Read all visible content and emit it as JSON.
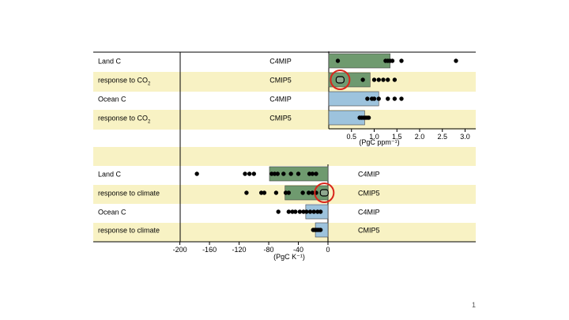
{
  "slide": {
    "page_number": "1"
  },
  "chart_data": [
    {
      "type": "scatter",
      "panel": "top",
      "xlabel": "(PgC ppm⁻¹)",
      "xlim": [
        -1.6,
        3.2
      ],
      "x_ticks": [
        0.5,
        1.0,
        1.5,
        2.0,
        2.5,
        3.0
      ],
      "x_tick_labels": [
        "0.5",
        "1.0",
        "1.5",
        "2.0",
        "2.5",
        "3.0"
      ],
      "rows": [
        {
          "group_lines": [
            "Land C",
            ""
          ],
          "model": "C4MIP",
          "bar_value": 1.35,
          "bar_color": "#6f9a6f",
          "points": [
            0.2,
            1.25,
            1.3,
            1.35,
            1.4,
            1.6,
            2.8
          ]
        },
        {
          "group_lines": [
            "response to CO",
            "2"
          ],
          "model": "CMIP5",
          "bar_value": 0.91,
          "bar_color": "#6f9a6f",
          "points": [
            0.25,
            0.75,
            1.0,
            1.1,
            1.2,
            1.3,
            1.45
          ],
          "highlight": 0.25
        },
        {
          "group_lines": [
            "Ocean C",
            ""
          ],
          "model": "C4MIP",
          "bar_value": 1.1,
          "bar_color": "#9dc3dd",
          "points": [
            0.85,
            0.95,
            1.0,
            1.1,
            1.3,
            1.45,
            1.6
          ]
        },
        {
          "group_lines": [
            "response to CO",
            "2"
          ],
          "model": "CMIP5",
          "bar_value": 0.79,
          "bar_color": "#9dc3dd",
          "points": [
            0.68,
            0.72,
            0.76,
            0.8,
            0.84,
            0.88
          ]
        }
      ]
    },
    {
      "type": "scatter",
      "panel": "bottom",
      "xlabel": "(PgC K⁻¹)",
      "xlim": [
        -200,
        100
      ],
      "x_ticks": [
        -200,
        -160,
        -120,
        -80,
        -40,
        0
      ],
      "x_tick_labels": [
        "-200",
        "-160",
        "-120",
        "-80",
        "-40",
        "0"
      ],
      "rows": [
        {
          "group_lines": [
            "Land C",
            ""
          ],
          "model": "C4MIP",
          "bar_value": -79,
          "bar_color": "#6f9a6f",
          "points": [
            -177,
            -112,
            -106,
            -100,
            -76,
            -72,
            -68,
            -60,
            -50,
            -40,
            -25,
            -21,
            -16
          ]
        },
        {
          "group_lines": [
            "response to climate",
            ""
          ],
          "model": "CMIP5",
          "bar_value": -58,
          "bar_color": "#6f9a6f",
          "points": [
            -110,
            -90,
            -86,
            -70,
            -57,
            -53,
            -34,
            -26,
            -21,
            -16,
            -5
          ],
          "highlight": -5
        },
        {
          "group_lines": [
            "Ocean C",
            ""
          ],
          "model": "C4MIP",
          "bar_value": -30,
          "bar_color": "#9dc3dd",
          "points": [
            -67,
            -53,
            -48,
            -44,
            -38,
            -33,
            -29,
            -24,
            -19,
            -14,
            -10
          ]
        },
        {
          "group_lines": [
            "response to climate",
            ""
          ],
          "model": "CMIP5",
          "bar_value": -17,
          "bar_color": "#9dc3dd",
          "points": [
            -20,
            -18,
            -16,
            -14,
            -12,
            -10
          ]
        }
      ]
    }
  ]
}
